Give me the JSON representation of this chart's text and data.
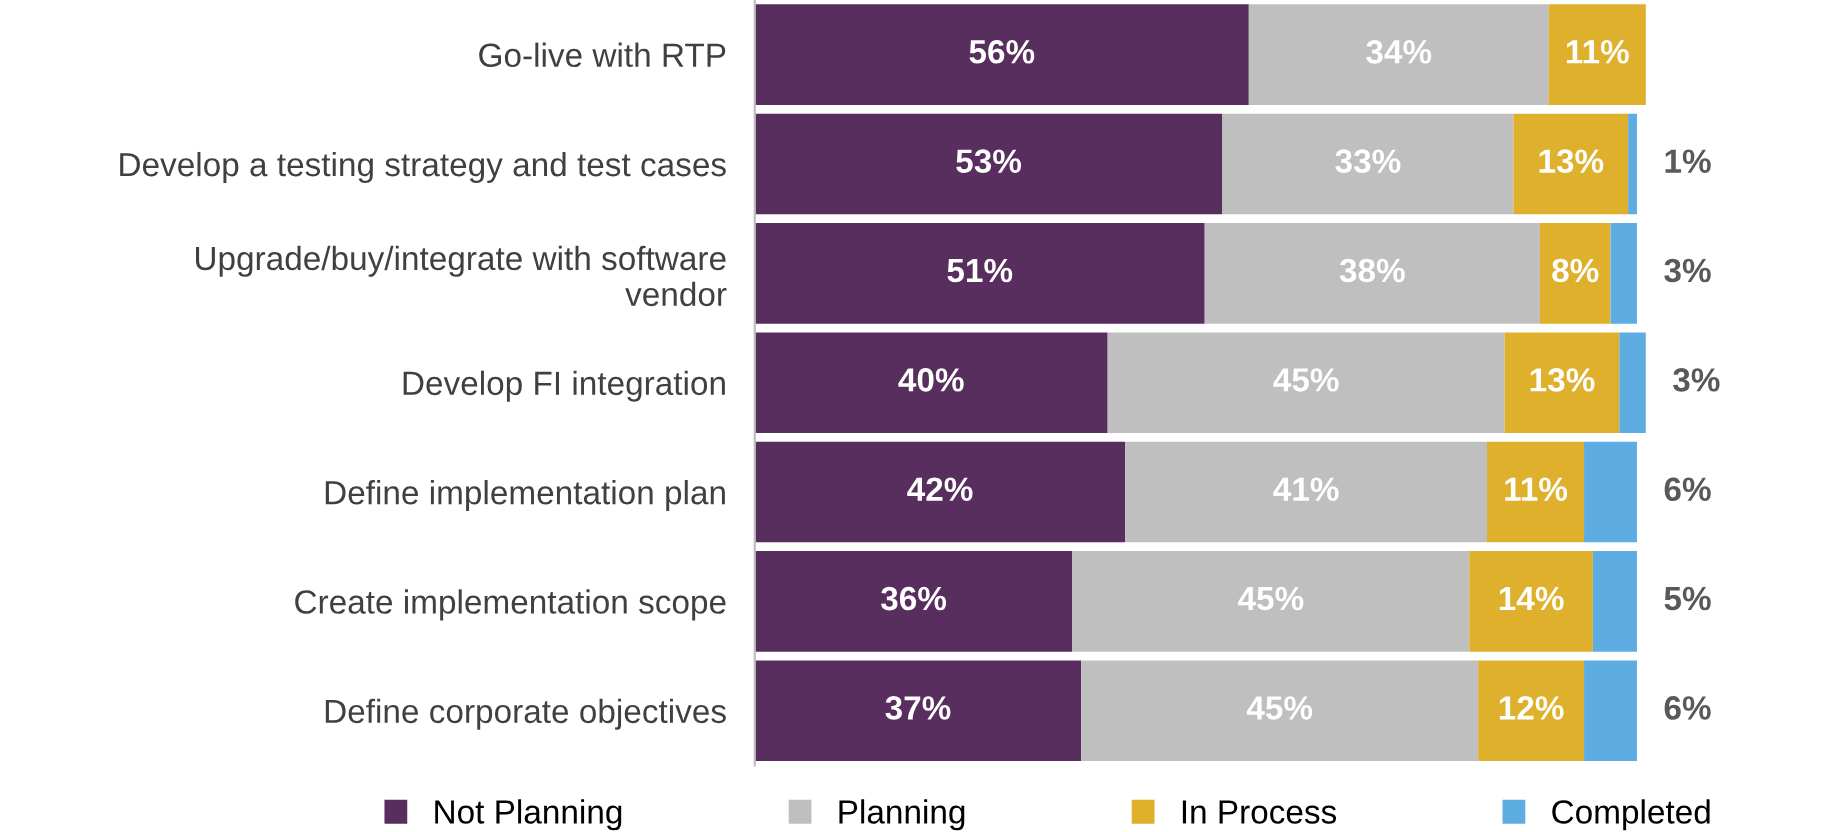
{
  "chart_data": {
    "type": "bar",
    "orientation": "horizontal",
    "stacked": true,
    "legend": "bottom",
    "categories": [
      "Go-live with RTP",
      "Develop a testing strategy and test cases",
      "Upgrade/buy/integrate with software\nvendor",
      "Develop FI integration",
      "Define implementation plan",
      "Create implementation scope",
      "Define corporate objectives"
    ],
    "series": [
      {
        "name": "Not Planning",
        "color": "#582e5e",
        "values": [
          56,
          53,
          51,
          40,
          42,
          36,
          37
        ],
        "value_labels": [
          "56%",
          "53%",
          "51%",
          "40%",
          "42%",
          "36%",
          "37%"
        ]
      },
      {
        "name": "Planning",
        "color": "#bfbfbf",
        "values": [
          34,
          33,
          38,
          45,
          41,
          45,
          45
        ],
        "value_labels": [
          "34%",
          "33%",
          "38%",
          "45%",
          "41%",
          "45%",
          "45%"
        ]
      },
      {
        "name": "In Process",
        "color": "#dfb02b",
        "values": [
          11,
          13,
          8,
          13,
          11,
          14,
          12
        ],
        "value_labels": [
          "11%",
          "13%",
          "8%",
          "13%",
          "11%",
          "14%",
          "12%"
        ]
      },
      {
        "name": "Completed",
        "color": "#5dade2",
        "values": [
          null,
          1,
          3,
          3,
          6,
          5,
          6
        ],
        "value_labels": [
          null,
          "1%",
          "3%",
          "3%",
          "6%",
          "5%",
          "6%"
        ]
      }
    ]
  }
}
